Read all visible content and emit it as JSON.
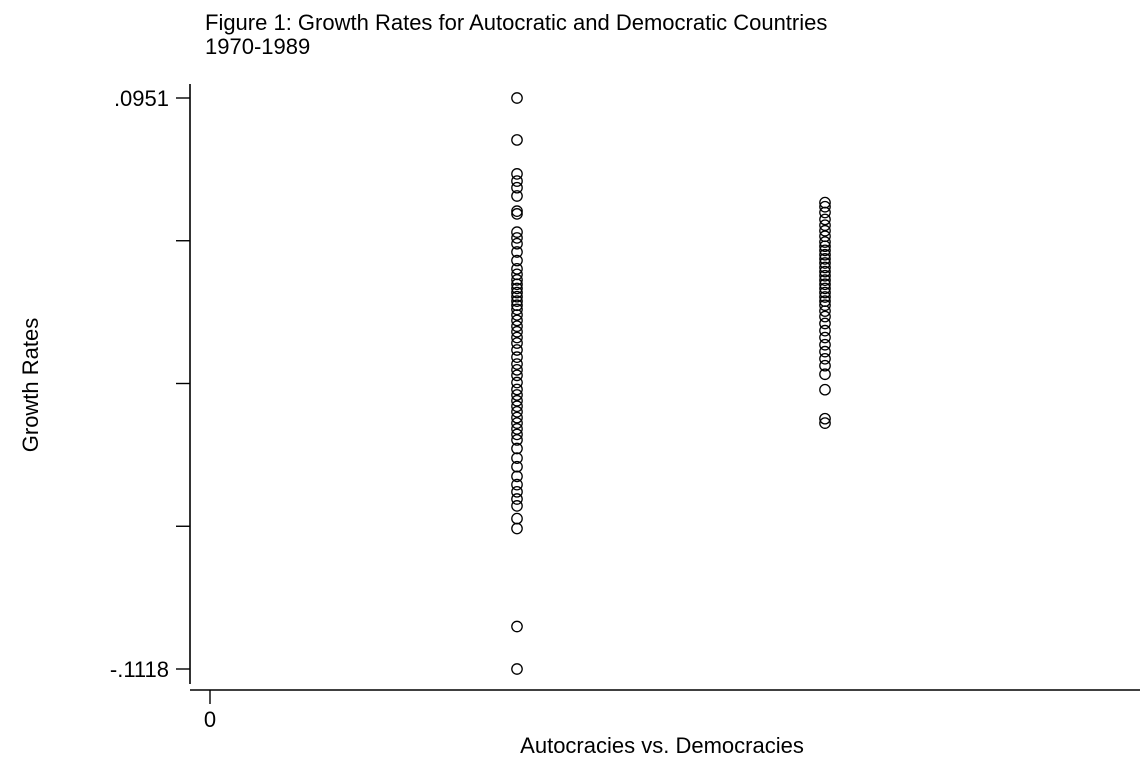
{
  "chart_data": {
    "type": "scatter",
    "title": "Figure 1: Growth Rates for Autocratic and Democratic Countries",
    "subtitle": "1970-1989",
    "xlabel": "Autocracies vs. Democracies",
    "ylabel": "Growth Rates",
    "x_tick_labels": [
      "0"
    ],
    "y_tick_labels": [
      ".0951",
      "",
      "",
      "",
      "-.1118"
    ],
    "y_ticks": [
      0.0951,
      0.04338,
      -0.00835,
      -0.06008,
      -0.1118
    ],
    "xlim": [
      -0.1,
      1.9
    ],
    "ylim": [
      -0.1118,
      0.0951
    ],
    "grid": false,
    "legend": "none",
    "marker": "hollow-circle",
    "series": [
      {
        "x": 0,
        "values": [
          0.0951,
          0.0799,
          0.0676,
          0.065,
          0.0626,
          0.0596,
          0.0541,
          0.0531,
          0.0465,
          0.0444,
          0.0423,
          0.0393,
          0.0362,
          0.0332,
          0.0312,
          0.0292,
          0.0276,
          0.0261,
          0.0246,
          0.0231,
          0.0215,
          0.02,
          0.0185,
          0.0165,
          0.0145,
          0.0124,
          0.0104,
          0.0083,
          0.0063,
          0.0038,
          0.0012,
          -0.0013,
          -0.0034,
          -0.0054,
          -0.008,
          -0.0105,
          -0.0125,
          -0.0146,
          -0.0166,
          -0.0186,
          -0.0207,
          -0.0227,
          -0.0248,
          -0.0268,
          -0.0288,
          -0.0319,
          -0.0354,
          -0.0385,
          -0.042,
          -0.045,
          -0.0476,
          -0.0502,
          -0.0527,
          -0.0573,
          -0.0609,
          -0.0964,
          -0.1118
        ]
      },
      {
        "x": 1.1,
        "values": [
          0.0572,
          0.0557,
          0.0536,
          0.0511,
          0.049,
          0.047,
          0.045,
          0.0429,
          0.0414,
          0.0399,
          0.0383,
          0.0368,
          0.0353,
          0.0337,
          0.0322,
          0.0307,
          0.0291,
          0.0276,
          0.0261,
          0.0246,
          0.023,
          0.0215,
          0.02,
          0.0179,
          0.0159,
          0.0134,
          0.0108,
          0.0083,
          0.0057,
          0.0032,
          0.0006,
          -0.0019,
          -0.005,
          -0.0106,
          -0.0211,
          -0.0227
        ]
      }
    ]
  }
}
